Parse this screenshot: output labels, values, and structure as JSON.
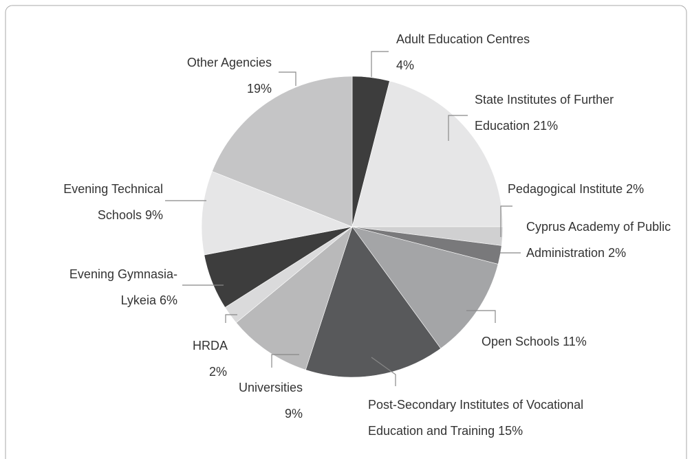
{
  "chart_data": {
    "type": "pie",
    "categories": [
      "Adult Education Centres",
      "State Institutes of Further Education",
      "Pedagogical Institute",
      "Cyprus Academy of Public Administration",
      "Open Schools",
      "Post-Secondary Institutes of Vocational Education and Training",
      "Universities",
      "HRDA",
      "Evening Gymnasia-Lykeia",
      "Evening Technical Schools",
      "Other Agencies"
    ],
    "values": [
      4,
      21,
      2,
      2,
      11,
      15,
      9,
      2,
      6,
      9,
      19
    ],
    "value_labels": [
      "4%",
      "21%",
      "2%",
      "2%",
      "11%",
      "15%",
      "9%",
      "2%",
      "6%",
      "9%",
      "19%"
    ],
    "colors": [
      "#3d3d3d",
      "#e6e6e7",
      "#d0d0d1",
      "#79797b",
      "#a4a5a7",
      "#58595b",
      "#b9b9ba",
      "#dadadb",
      "#3d3d3d",
      "#e6e6e7",
      "#c5c5c6"
    ]
  }
}
